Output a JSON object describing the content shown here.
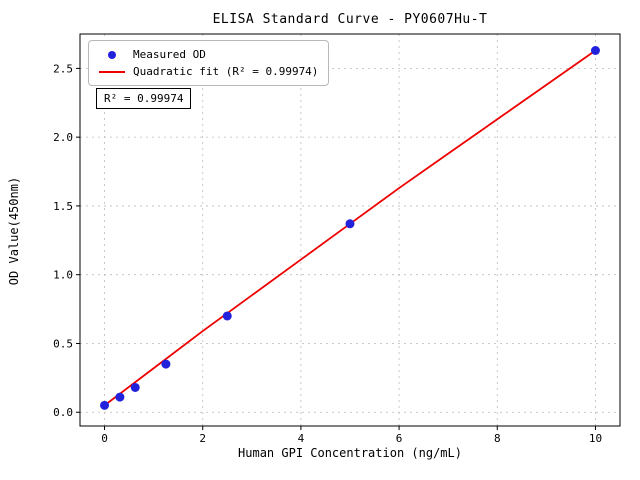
{
  "chart_data": {
    "type": "scatter",
    "title": "ELISA Standard Curve - PY0607Hu-T",
    "xlabel": "Human GPI Concentration (ng/mL)",
    "ylabel": "OD Value(450nm)",
    "xlim": [
      -0.5,
      10.5
    ],
    "ylim": [
      -0.1,
      2.75
    ],
    "xticks": [
      0,
      2,
      4,
      6,
      8,
      10
    ],
    "xtick_labels": [
      "0",
      "2",
      "4",
      "6",
      "8",
      "10"
    ],
    "yticks": [
      0.0,
      0.5,
      1.0,
      1.5,
      2.0,
      2.5
    ],
    "ytick_labels": [
      "0.0",
      "0.5",
      "1.0",
      "1.5",
      "2.0",
      "2.5"
    ],
    "grid": true,
    "legend_position": "upper-left",
    "annotation": "R² = 0.99974",
    "colors": {
      "measured": "#2222dd",
      "fit": "#ee0000",
      "grid": "#bbbbbb",
      "axis": "#000000"
    },
    "series": [
      {
        "name": "Measured OD",
        "type": "scatter",
        "x": [
          0,
          0.3125,
          0.625,
          1.25,
          2.5,
          5,
          10
        ],
        "y": [
          0.05,
          0.11,
          0.18,
          0.35,
          0.7,
          1.37,
          2.63
        ]
      },
      {
        "name": "Quadratic fit (R² = 0.99974)",
        "type": "line",
        "x": [
          0,
          1,
          2,
          3,
          4,
          5,
          6,
          7,
          8,
          9,
          10
        ],
        "y": [
          0.05,
          0.32,
          0.59,
          0.85,
          1.11,
          1.37,
          1.63,
          1.88,
          2.13,
          2.38,
          2.63
        ]
      }
    ]
  }
}
